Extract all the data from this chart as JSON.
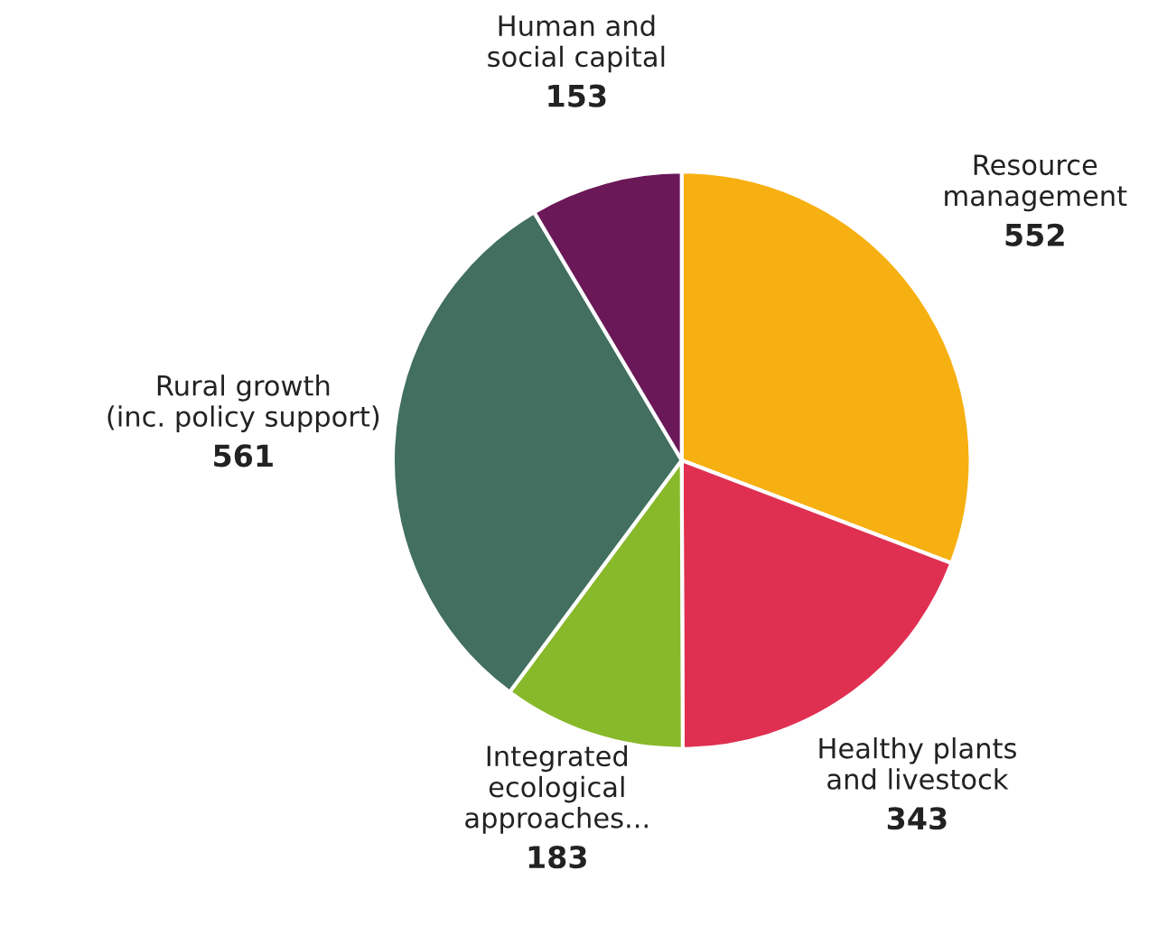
{
  "chart_data": {
    "type": "pie",
    "categories": [
      "Resource\nmanagement",
      "Healthy plants\nand livestock",
      "Integrated\necological\napproaches...",
      "Rural growth\n(inc. policy support)",
      "Human and\nsocial capital"
    ],
    "values": [
      552,
      343,
      183,
      561,
      153
    ],
    "colors": [
      "#f7b011",
      "#e03052",
      "#88b92a",
      "#426f5f",
      "#6a1858"
    ],
    "data_labels": true,
    "legend": false
  }
}
